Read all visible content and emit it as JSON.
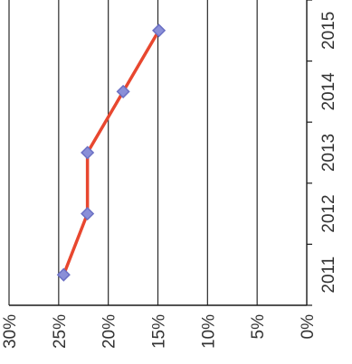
{
  "chart_data": {
    "type": "line",
    "orientation": "rotated-90-clockwise",
    "title": "",
    "xlabel": "",
    "ylabel": "",
    "categories": [
      "2011",
      "2012",
      "2013",
      "2014",
      "2015"
    ],
    "series": [
      {
        "values": [
          24.5,
          22.1,
          22.1,
          18.5,
          14.9
        ]
      }
    ],
    "ylim": [
      0,
      30
    ],
    "y_ticks": [
      0,
      5,
      10,
      15,
      20,
      25,
      30
    ],
    "y_tick_labels": [
      "0%",
      "5%",
      "10%",
      "15%",
      "20%",
      "25%",
      "30%"
    ],
    "y_axis_reversed": true,
    "grid": true,
    "legend": "none",
    "colors": {
      "line": "#e8472f",
      "marker_fill": "#8a8fd8",
      "marker_stroke": "#6b70c4"
    }
  }
}
